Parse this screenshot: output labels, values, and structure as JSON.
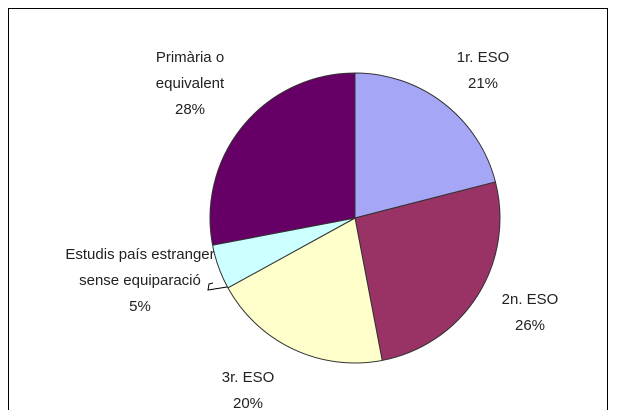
{
  "chart_data": {
    "type": "pie",
    "categories": [
      "1r. ESO",
      "2n. ESO",
      "3r. ESO",
      "Estudis país estranger sense equiparació",
      "Primària o equivalent"
    ],
    "values": [
      21,
      26,
      20,
      5,
      28
    ],
    "value_labels": [
      "21%",
      "26%",
      "20%",
      "5%",
      "28%"
    ],
    "colors": [
      "#a6a6f6",
      "#993366",
      "#ffffcc",
      "#ccffff",
      "#660066"
    ]
  }
}
